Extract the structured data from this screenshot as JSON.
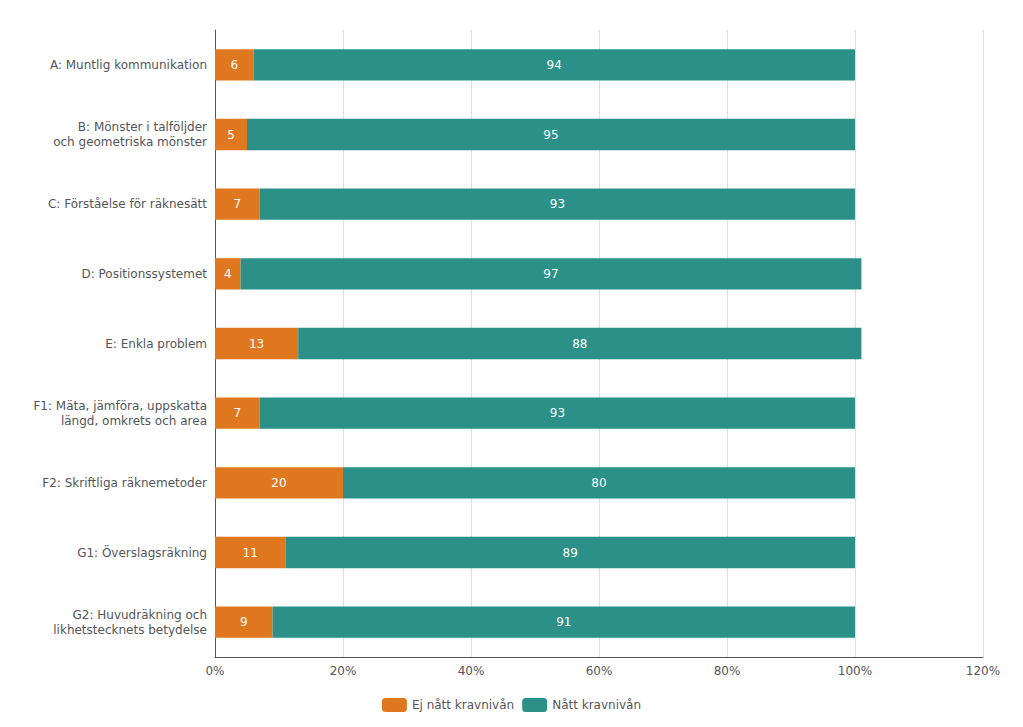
{
  "chart_data": {
    "type": "bar",
    "orientation": "horizontal",
    "stacked": true,
    "data_labels": true,
    "grid": true,
    "legend": "bottom",
    "categories": [
      "A: Muntlig kommunikation",
      "B: Mönster i talföljder\noch geometriska mönster",
      "C: Förståelse för räknesätt",
      "D: Positionssystemet",
      "E: Enkla problem",
      "F1: Mäta, jämföra, uppskatta\nlängd, omkrets och area",
      "F2: Skriftliga räknemetoder",
      "G1: Överslagsräkning",
      "G2: Huvudräkning och\nlikhetstecknets betydelse"
    ],
    "series": [
      {
        "name": "Ej nått kravnivån",
        "color": "#E07820",
        "values": [
          6,
          5,
          7,
          4,
          13,
          7,
          20,
          11,
          9
        ]
      },
      {
        "name": "Nått kravnivån",
        "color": "#2A9088",
        "values": [
          94,
          95,
          93,
          97,
          88,
          93,
          80,
          89,
          91
        ]
      }
    ],
    "xlim": [
      0,
      120
    ],
    "xticks": [
      {
        "value": 0,
        "label": "0%"
      },
      {
        "value": 20,
        "label": "20%"
      },
      {
        "value": 40,
        "label": "40%"
      },
      {
        "value": 60,
        "label": "60%"
      },
      {
        "value": 80,
        "label": "80%"
      },
      {
        "value": 100,
        "label": "100%"
      },
      {
        "value": 120,
        "label": "120%"
      }
    ]
  }
}
